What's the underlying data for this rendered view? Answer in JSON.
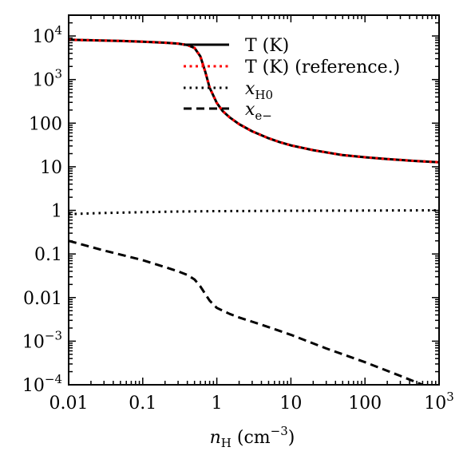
{
  "chart_data": {
    "type": "line",
    "xscale": "log",
    "yscale": "log",
    "xlim": [
      0.01,
      1000
    ],
    "ylim": [
      0.0001,
      30000
    ],
    "grid": false,
    "legend_position": "top-right",
    "xlabel": {
      "main": "n",
      "sub": "H",
      "rest": " (cm",
      "sup": "−3",
      "close": ")"
    },
    "ylabel": "",
    "x_ticks": [
      {
        "value": 0.01,
        "label": "0.01"
      },
      {
        "value": 0.1,
        "label": "0.1"
      },
      {
        "value": 1,
        "label": "1"
      },
      {
        "value": 10,
        "label": "10"
      },
      {
        "value": 100,
        "label": "100"
      },
      {
        "value": 1000,
        "label": "10",
        "sup": "3"
      }
    ],
    "y_ticks": [
      {
        "value": 0.0001,
        "label": "10",
        "sup": "−4"
      },
      {
        "value": 0.001,
        "label": "10",
        "sup": "−3"
      },
      {
        "value": 0.01,
        "label": "0.01"
      },
      {
        "value": 0.1,
        "label": "0.1"
      },
      {
        "value": 1,
        "label": "1"
      },
      {
        "value": 10,
        "label": "10"
      },
      {
        "value": 100,
        "label": "100"
      },
      {
        "value": 1000,
        "label": "10",
        "sup": "3"
      },
      {
        "value": 10000,
        "label": "10",
        "sup": "4"
      }
    ],
    "series": [
      {
        "name": "T (K)",
        "color": "#000000",
        "dash": "solid",
        "x": [
          0.01,
          0.05,
          0.1,
          0.2,
          0.3,
          0.4,
          0.5,
          0.6,
          0.7,
          0.8,
          1.0,
          1.2,
          1.5,
          2,
          3,
          5,
          7,
          10,
          20,
          50,
          100,
          200,
          500,
          1000
        ],
        "y": [
          8200,
          7700,
          7400,
          7000,
          6700,
          6200,
          5300,
          3400,
          1500,
          650,
          290,
          190,
          135,
          95,
          65,
          45,
          37,
          31,
          24,
          18.5,
          16.5,
          15,
          13.5,
          12.7
        ]
      },
      {
        "name": "T (K) (reference.)",
        "color": "#ff0000",
        "dash": "dotted",
        "x": [
          0.01,
          0.05,
          0.1,
          0.2,
          0.3,
          0.4,
          0.5,
          0.6,
          0.7,
          0.8,
          1.0,
          1.2,
          1.5,
          2,
          3,
          5,
          7,
          10,
          20,
          50,
          100,
          200,
          500,
          1000
        ],
        "y": [
          8200,
          7700,
          7400,
          7000,
          6700,
          6200,
          5300,
          3400,
          1500,
          650,
          290,
          190,
          135,
          95,
          65,
          45,
          37,
          31,
          24,
          18.5,
          16.5,
          15,
          13.5,
          12.7
        ]
      },
      {
        "name": "x_H0",
        "label_main": "x",
        "label_sub": "H0",
        "color": "#000000",
        "dash": "dotted",
        "x": [
          0.01,
          0.03,
          0.1,
          0.3,
          1,
          3,
          10,
          30,
          100,
          300,
          1000
        ],
        "y": [
          0.82,
          0.87,
          0.91,
          0.94,
          0.96,
          0.97,
          0.98,
          0.985,
          0.99,
          0.995,
          1.0
        ]
      },
      {
        "name": "x_e-",
        "label_main": "x",
        "label_sub": "e−",
        "color": "#000000",
        "dash": "dashed",
        "x": [
          0.01,
          0.03,
          0.1,
          0.2,
          0.3,
          0.4,
          0.5,
          0.6,
          0.7,
          0.8,
          1.0,
          1.5,
          2,
          3,
          5,
          10,
          30,
          100,
          300,
          600
        ],
        "y": [
          0.2,
          0.12,
          0.072,
          0.05,
          0.04,
          0.033,
          0.026,
          0.018,
          0.012,
          0.0085,
          0.0058,
          0.0042,
          0.0035,
          0.0028,
          0.0021,
          0.0014,
          0.00068,
          0.00033,
          0.00016,
          0.0001
        ]
      }
    ]
  }
}
